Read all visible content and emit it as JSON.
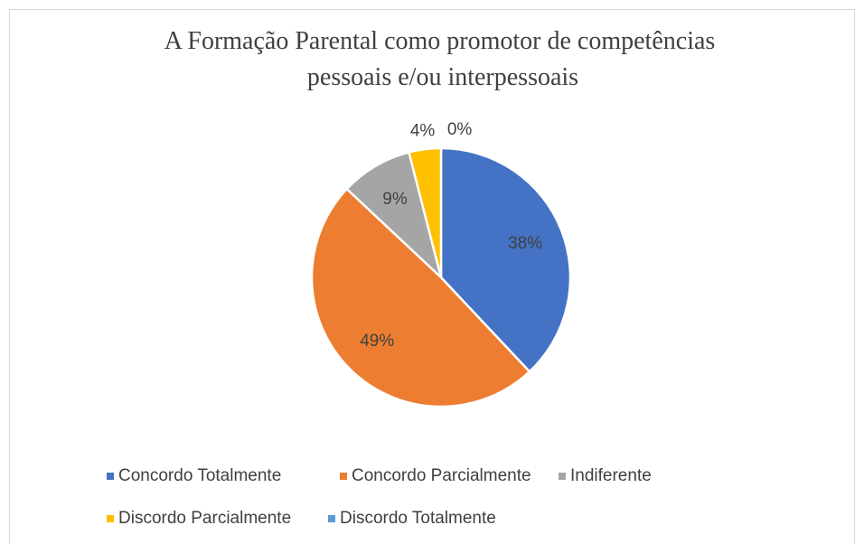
{
  "chart_data": {
    "type": "pie",
    "title": "A Formação Parental como promotor de competências pessoais e/ou interpessoais",
    "categories": [
      "Concordo Totalmente",
      "Concordo Parcialmente",
      "Indiferente",
      "Discordo Parcialmente",
      "Discordo Totalmente"
    ],
    "values": [
      38,
      49,
      9,
      4,
      0
    ],
    "value_labels": [
      "38%",
      "49%",
      "9%",
      "4%",
      "0%"
    ],
    "colors": [
      "#4472c4",
      "#ed7d31",
      "#a5a5a5",
      "#ffc000",
      "#5b9bd5"
    ],
    "legend": "bottom"
  }
}
